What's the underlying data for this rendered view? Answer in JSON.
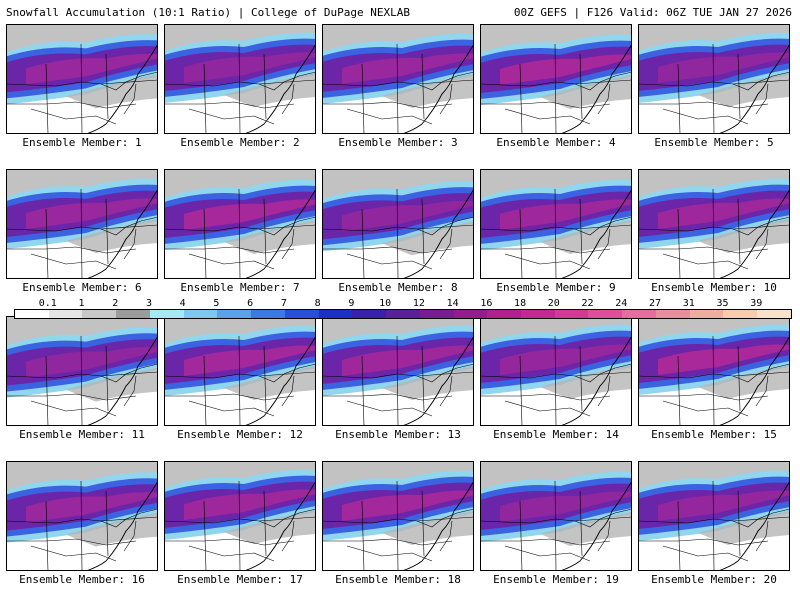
{
  "header": {
    "left": "Snowfall Accumulation (10:1 Ratio) | College of DuPage NEXLAB",
    "right": "00Z GEFS | F126 Valid: 06Z TUE JAN 27 2026"
  },
  "members": [
    {
      "label": "Ensemble Member: 1",
      "intensity": 0.55,
      "band": 0.52
    },
    {
      "label": "Ensemble Member: 2",
      "intensity": 0.45,
      "band": 0.45
    },
    {
      "label": "Ensemble Member: 3",
      "intensity": 0.55,
      "band": 0.5
    },
    {
      "label": "Ensemble Member: 4",
      "intensity": 0.7,
      "band": 0.55
    },
    {
      "label": "Ensemble Member: 5",
      "intensity": 0.45,
      "band": 0.45
    },
    {
      "label": "Ensemble Member: 6",
      "intensity": 0.55,
      "band": 0.5
    },
    {
      "label": "Ensemble Member: 7",
      "intensity": 0.7,
      "band": 0.55
    },
    {
      "label": "Ensemble Member: 8",
      "intensity": 0.45,
      "band": 0.62
    },
    {
      "label": "Ensemble Member: 9",
      "intensity": 0.6,
      "band": 0.55
    },
    {
      "label": "Ensemble Member: 10",
      "intensity": 0.6,
      "band": 0.5
    },
    {
      "label": "Ensemble Member: 11",
      "intensity": 0.45,
      "band": 0.58
    },
    {
      "label": "Ensemble Member: 12",
      "intensity": 0.65,
      "band": 0.5
    },
    {
      "label": "Ensemble Member: 13",
      "intensity": 0.6,
      "band": 0.5
    },
    {
      "label": "Ensemble Member: 14",
      "intensity": 0.5,
      "band": 0.45
    },
    {
      "label": "Ensemble Member: 15",
      "intensity": 0.72,
      "band": 0.45
    },
    {
      "label": "Ensemble Member: 16",
      "intensity": 0.55,
      "band": 0.58
    },
    {
      "label": "Ensemble Member: 17",
      "intensity": 0.6,
      "band": 0.45
    },
    {
      "label": "Ensemble Member: 18",
      "intensity": 0.65,
      "band": 0.5
    },
    {
      "label": "Ensemble Member: 19",
      "intensity": 0.45,
      "band": 0.55
    },
    {
      "label": "Ensemble Member: 20",
      "intensity": 0.5,
      "band": 0.5
    }
  ],
  "legend": {
    "labels": [
      "0.1",
      "1",
      "2",
      "3",
      "4",
      "5",
      "6",
      "7",
      "8",
      "9",
      "10",
      "12",
      "14",
      "16",
      "18",
      "20",
      "22",
      "24",
      "27",
      "31",
      "35",
      "39"
    ],
    "colors": [
      "#ffffff",
      "#e6e6e6",
      "#c8c8c8",
      "#9b9b9b",
      "#a7e8f5",
      "#7cc8f0",
      "#5aa2ea",
      "#3a7ae2",
      "#2650d8",
      "#1e2fc4",
      "#3a1fa8",
      "#5a1f9c",
      "#7a1d94",
      "#951c8e",
      "#b0208e",
      "#c22a90",
      "#d23a95",
      "#de4f9b",
      "#e56e9e",
      "#ea8e9f",
      "#efae9f",
      "#f4ccb0",
      "#f8e2cc"
    ]
  }
}
